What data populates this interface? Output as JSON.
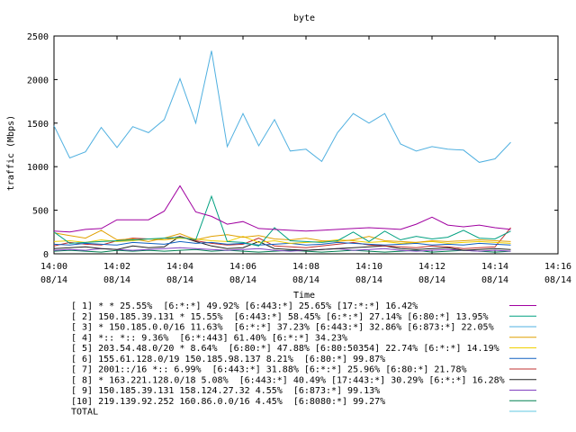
{
  "chart_data": {
    "type": "line",
    "title": "byte",
    "xlabel": "Time",
    "ylabel": "traffic (Mbps)",
    "ylim": [
      0,
      2500
    ],
    "xlim_minutes": [
      0,
      16
    ],
    "y_ticks": [
      "0",
      "500",
      "1000",
      "1500",
      "2000",
      "2500"
    ],
    "x_ticks": [
      {
        "t": 0,
        "time": "14:00",
        "date": "08/14"
      },
      {
        "t": 2,
        "time": "14:02",
        "date": "08/14"
      },
      {
        "t": 4,
        "time": "14:04",
        "date": "08/14"
      },
      {
        "t": 6,
        "time": "14:06",
        "date": "08/14"
      },
      {
        "t": 8,
        "time": "14:08",
        "date": "08/14"
      },
      {
        "t": 10,
        "time": "14:10",
        "date": "08/14"
      },
      {
        "t": 12,
        "time": "14:12",
        "date": "08/14"
      },
      {
        "t": 14,
        "time": "14:14",
        "date": "08/14"
      },
      {
        "t": 16,
        "time": "14:16",
        "date": "08/14"
      }
    ],
    "x_minutes": [
      0,
      0.5,
      1,
      1.5,
      2,
      2.5,
      3,
      3.5,
      4,
      4.5,
      5,
      5.5,
      6,
      6.5,
      7,
      7.5,
      8,
      8.5,
      9,
      9.5,
      10,
      10.5,
      11,
      11.5,
      12,
      12.5,
      13,
      13.5,
      14,
      14.5
    ],
    "series": [
      {
        "name": "[ 1] * * 25.55%  [6:*:*] 49.92% [6:443:*] 25.65% [17:*:*] 16.42%",
        "color": "#a000a0",
        "values": [
          260,
          250,
          280,
          290,
          390,
          390,
          390,
          490,
          780,
          480,
          430,
          340,
          370,
          290,
          280,
          270,
          260,
          270,
          280,
          290,
          300,
          290,
          280,
          340,
          420,
          330,
          310,
          330,
          300,
          280
        ]
      },
      {
        "name": "[ 2] 150.185.39.131 * 15.55%  [6:443:*] 58.45% [6:*:*] 27.14% [6:80:*] 13.95%",
        "color": "#00a080",
        "values": [
          250,
          120,
          130,
          140,
          150,
          160,
          170,
          180,
          190,
          160,
          660,
          140,
          130,
          90,
          300,
          150,
          140,
          130,
          150,
          250,
          140,
          260,
          160,
          200,
          170,
          190,
          270,
          180,
          170,
          260
        ]
      },
      {
        "name": "[ 3] * 150.185.0.0/16 11.63%  [6:*:*] 37.23% [6:443:*] 32.86% [6:873:*] 22.05%",
        "color": "#50b0e0",
        "values": [
          1470,
          1100,
          1170,
          1450,
          1220,
          1460,
          1390,
          1540,
          2010,
          1500,
          2330,
          1230,
          1610,
          1240,
          1540,
          1180,
          1200,
          1060,
          1390,
          1610,
          1500,
          1610,
          1260,
          1180,
          1230,
          1200,
          1190,
          1050,
          1090,
          1280
        ]
      },
      {
        "name": "[ 4] *:: *:: 9.36%  [6:*:443] 61.40% [6:*:*] 34.23%",
        "color": "#e0a000",
        "values": [
          240,
          210,
          180,
          270,
          160,
          170,
          140,
          180,
          230,
          160,
          200,
          220,
          190,
          210,
          170,
          160,
          180,
          150,
          140,
          160,
          200,
          150,
          140,
          130,
          150,
          140,
          150,
          160,
          150,
          140
        ]
      },
      {
        "name": "[ 5] 203.54.48.0/20 * 8.64%  [6:80:*] 47.88% [6:80:50354] 22.74% [6:*:*] 14.19%",
        "color": "#f0d000",
        "values": [
          140,
          150,
          130,
          160,
          140,
          150,
          170,
          160,
          180,
          170,
          150,
          140,
          200,
          130,
          150,
          120,
          130,
          140,
          160,
          150,
          130,
          140,
          120,
          130,
          140,
          120,
          130,
          140,
          130,
          120
        ]
      },
      {
        "name": "[ 6] 155.61.128.0/19 150.185.98.137 8.21%  [6:80:*] 99.87%",
        "color": "#1060c0",
        "values": [
          110,
          100,
          120,
          110,
          100,
          130,
          120,
          110,
          140,
          120,
          130,
          110,
          120,
          100,
          110,
          120,
          100,
          110,
          130,
          120,
          110,
          100,
          110,
          120,
          100,
          110,
          100,
          120,
          110,
          100
        ]
      },
      {
        "name": "[ 7] 2001::/16 *:: 6.99%  [6:443:*] 31.88% [6:*:*] 25.96% [6:80:*] 21.78%",
        "color": "#c03030",
        "values": [
          90,
          130,
          110,
          100,
          150,
          180,
          170,
          160,
          200,
          150,
          120,
          100,
          110,
          180,
          90,
          80,
          70,
          90,
          110,
          130,
          100,
          90,
          80,
          70,
          90,
          80,
          60,
          70,
          80,
          300
        ]
      },
      {
        "name": "[ 8] * 163.221.128.0/18 5.08%  [6:443:*] 40.49% [17:443:*] 30.29% [6:*:*] 16.28%",
        "color": "#202020",
        "values": [
          60,
          70,
          80,
          60,
          50,
          90,
          70,
          80,
          200,
          140,
          90,
          60,
          70,
          140,
          60,
          50,
          40,
          50,
          60,
          70,
          80,
          90,
          60,
          50,
          60,
          70,
          40,
          50,
          60,
          50
        ]
      },
      {
        "name": "[ 9] 150.185.39.131 158.124.27.32 4.55%  [6:873:*] 99.13%",
        "color": "#8040c0",
        "values": [
          40,
          50,
          40,
          60,
          50,
          40,
          50,
          60,
          70,
          60,
          50,
          40,
          50,
          60,
          40,
          30,
          40,
          50,
          60,
          40,
          50,
          60,
          40,
          30,
          40,
          50,
          40,
          30,
          40,
          30
        ]
      },
      {
        "name": "[10] 219.139.92.252 160.86.0.0/16 4.45%  [6:8080:*] 99.27%",
        "color": "#008050",
        "values": [
          30,
          40,
          30,
          20,
          40,
          30,
          40,
          30,
          40,
          50,
          30,
          40,
          30,
          20,
          30,
          40,
          30,
          20,
          30,
          40,
          30,
          20,
          30,
          40,
          20,
          30,
          40,
          30,
          20,
          30
        ]
      }
    ],
    "total": {
      "name": "TOTAL",
      "color": "#60c8e0"
    }
  }
}
